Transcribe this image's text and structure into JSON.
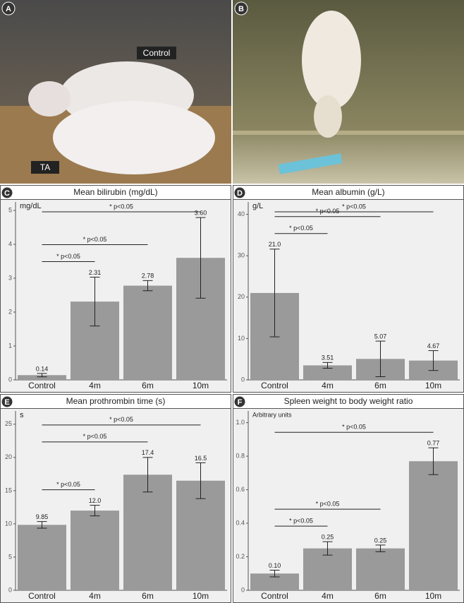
{
  "photos": [
    {
      "panel": "A",
      "labels": [
        "Control",
        "TA"
      ]
    },
    {
      "panel": "B"
    }
  ],
  "chart_data": [
    {
      "type": "bar",
      "panel": "C",
      "title": "Mean bilirubin (mg/dL)",
      "y_label": "mg/dL",
      "categories": [
        "Control",
        "4m",
        "6m",
        "10m"
      ],
      "values": [
        0.14,
        2.31,
        2.78,
        3.6
      ],
      "errors": [
        0.05,
        0.72,
        0.15,
        1.19
      ],
      "value_labels": [
        "0.14",
        "2.31",
        "2.78",
        "3.60"
      ],
      "color": "#9a9a9a",
      "ylim": [
        0,
        5.25
      ],
      "yticks": [
        0,
        1,
        2,
        3,
        4,
        5
      ],
      "comparisons": [
        {
          "label": "* p<0.05",
          "from": 0,
          "to": 1
        },
        {
          "label": "* p<0.05",
          "from": 0,
          "to": 2
        },
        {
          "label": "* p<0.05",
          "from": 0,
          "to": 3
        }
      ]
    },
    {
      "type": "bar",
      "panel": "D",
      "title": "Mean albumin (g/L)",
      "y_label": "g/L",
      "categories": [
        "Control",
        "4m",
        "6m",
        "10m"
      ],
      "values": [
        21.0,
        3.51,
        5.07,
        4.67
      ],
      "errors": [
        10.6,
        0.7,
        4.3,
        2.4
      ],
      "value_labels": [
        "21.0",
        "3.51",
        "5.07",
        "4.67"
      ],
      "color": "#9a9a9a",
      "ylim": [
        0,
        43
      ],
      "yticks": [
        0,
        10,
        20,
        30,
        40
      ],
      "comparisons": [
        {
          "label": "* p<0.05",
          "from": 0,
          "to": 1
        },
        {
          "label": "* p<0.05",
          "from": 0,
          "to": 2
        },
        {
          "label": "* p<0.05",
          "from": 0,
          "to": 3
        }
      ]
    },
    {
      "type": "bar",
      "panel": "E",
      "title": "Mean prothrombin time (s)",
      "y_label": "s",
      "categories": [
        "Control",
        "4m",
        "6m",
        "10m"
      ],
      "values": [
        9.85,
        12.0,
        17.4,
        16.5
      ],
      "errors": [
        0.5,
        0.8,
        2.6,
        2.7
      ],
      "value_labels": [
        "9.85",
        "12.0",
        "17.4",
        "16.5"
      ],
      "color": "#9a9a9a",
      "ylim": [
        0,
        27
      ],
      "yticks": [
        0,
        5,
        10,
        15,
        20,
        25
      ],
      "comparisons": [
        {
          "label": "* p<0.05",
          "from": 0,
          "to": 1
        },
        {
          "label": "* p<0.05",
          "from": 0,
          "to": 2
        },
        {
          "label": "* p<0.05",
          "from": 0,
          "to": 3
        }
      ]
    },
    {
      "type": "bar",
      "panel": "F",
      "title": "Spleen weight to body weight ratio",
      "y_label": "Arbitrary units",
      "categories": [
        "Control",
        "4m",
        "6m",
        "10m"
      ],
      "values": [
        0.1,
        0.25,
        0.25,
        0.77
      ],
      "errors": [
        0.02,
        0.04,
        0.02,
        0.08
      ],
      "value_labels": [
        "0.10",
        "0.25",
        "0.25",
        "0.77"
      ],
      "color": "#9a9a9a",
      "ylim": [
        0,
        1.07
      ],
      "yticks": [
        0,
        0.2,
        0.4,
        0.6,
        0.8,
        {
          "value": 1,
          "label": "1.0"
        }
      ],
      "comparisons": [
        {
          "label": "* p<0.05",
          "from": 0,
          "to": 1
        },
        {
          "label": "* p<0.05",
          "from": 0,
          "to": 2
        },
        {
          "label": "* p<0.05",
          "from": 0,
          "to": 3
        }
      ]
    }
  ]
}
